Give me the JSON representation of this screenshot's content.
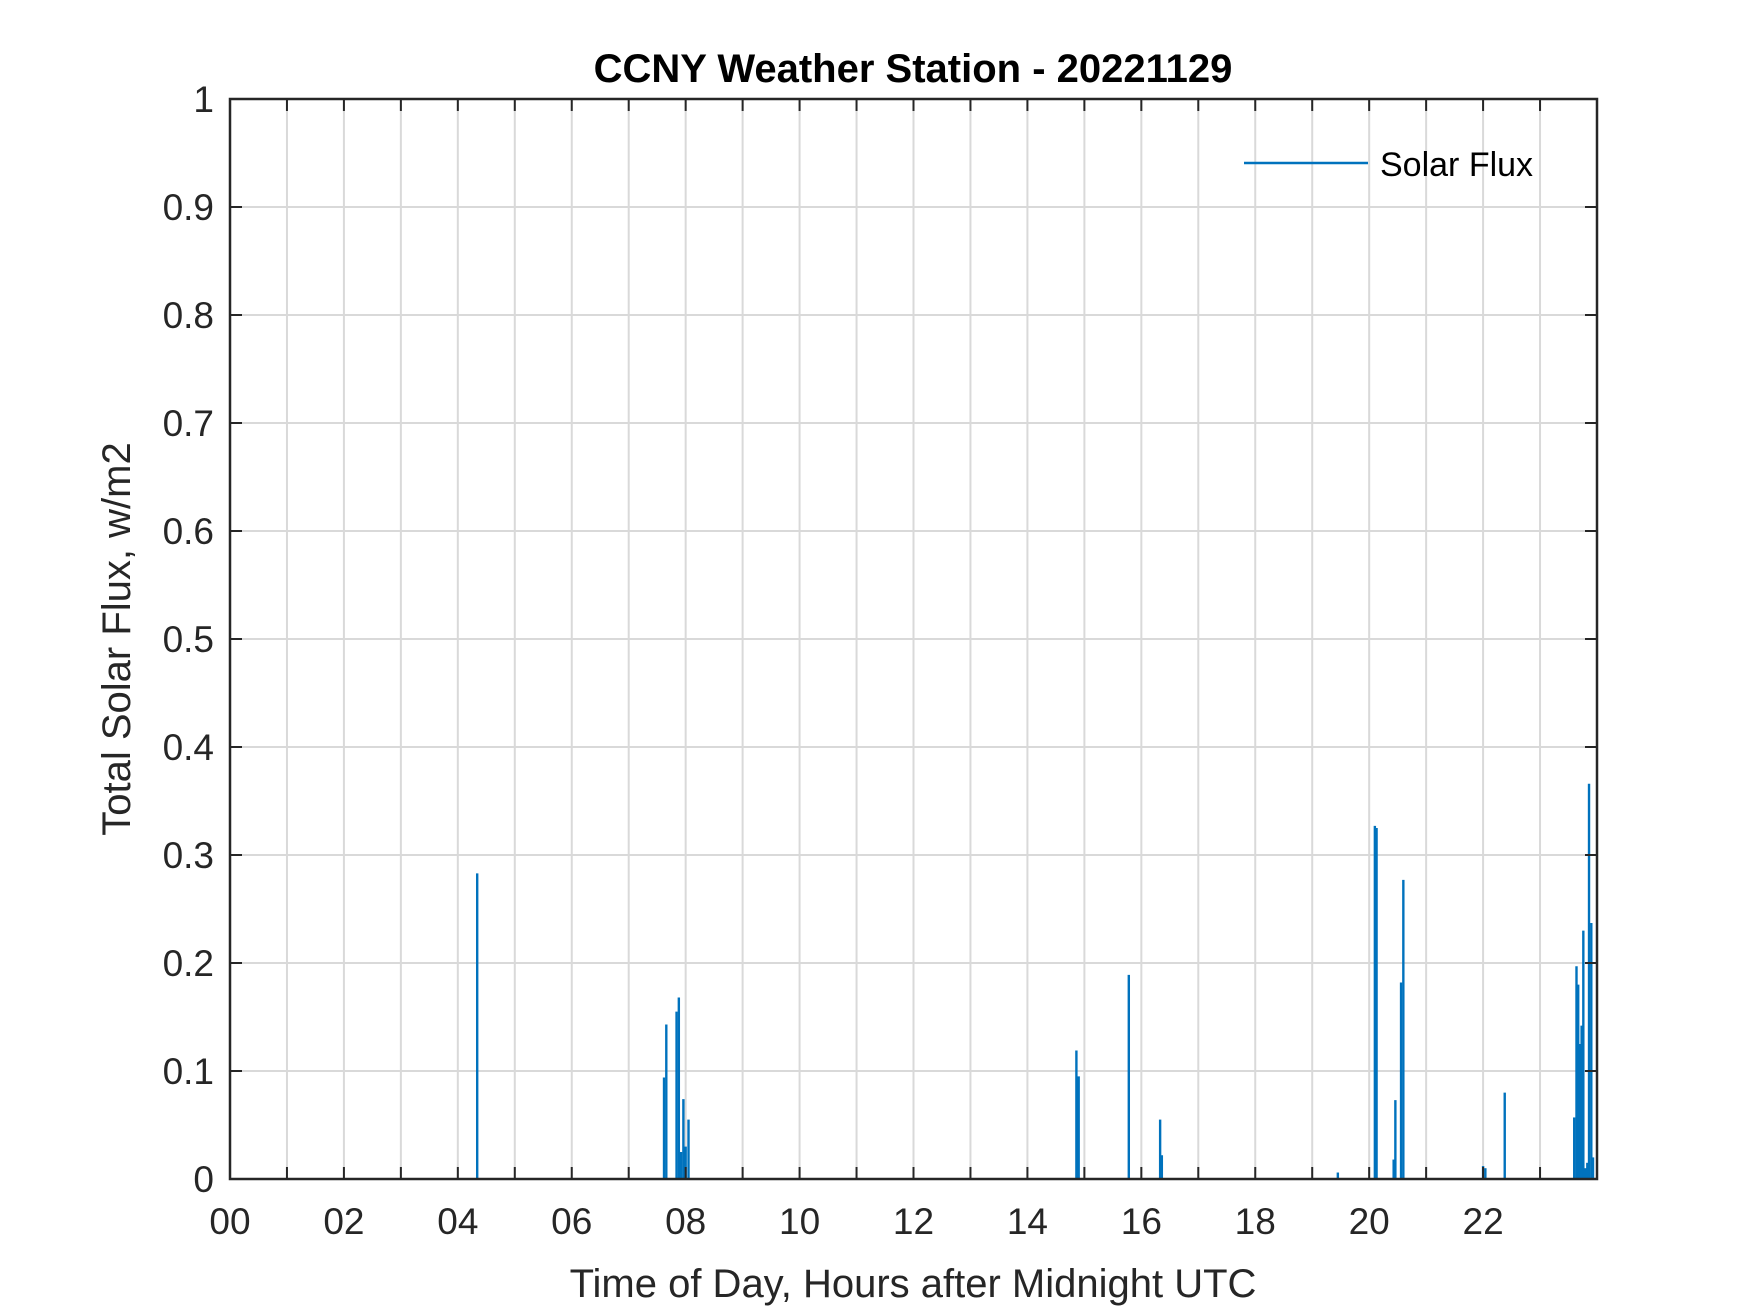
{
  "chart_data": {
    "type": "line",
    "title": "CCNY Weather Station - 20221129",
    "xlabel": "Time of Day, Hours after Midnight UTC",
    "ylabel": "Total Solar Flux, w/m2",
    "xlim": [
      0,
      24
    ],
    "ylim": [
      0,
      1
    ],
    "x_tick_values": [
      0,
      2,
      4,
      6,
      8,
      10,
      12,
      14,
      16,
      18,
      20,
      22
    ],
    "x_tick_labels": [
      "00",
      "02",
      "04",
      "06",
      "08",
      "10",
      "12",
      "14",
      "16",
      "18",
      "20",
      "22"
    ],
    "x_minor_grid_step": 1,
    "y_tick_values": [
      0,
      0.1,
      0.2,
      0.3,
      0.4,
      0.5,
      0.6,
      0.7,
      0.8,
      0.9,
      1
    ],
    "y_tick_labels": [
      "0",
      "0.1",
      "0.2",
      "0.3",
      "0.4",
      "0.5",
      "0.6",
      "0.7",
      "0.8",
      "0.9",
      "1"
    ],
    "grid": true,
    "legend": {
      "entries": [
        "Solar Flux"
      ],
      "location": "top-right"
    },
    "line_color": "#0072BD",
    "series": [
      {
        "name": "Solar Flux",
        "spikes": [
          {
            "x": 4.34,
            "y": 0.283
          },
          {
            "x": 7.62,
            "y": 0.094
          },
          {
            "x": 7.66,
            "y": 0.143
          },
          {
            "x": 7.84,
            "y": 0.155
          },
          {
            "x": 7.88,
            "y": 0.168
          },
          {
            "x": 7.92,
            "y": 0.025
          },
          {
            "x": 7.96,
            "y": 0.074
          },
          {
            "x": 8.0,
            "y": 0.03
          },
          {
            "x": 8.05,
            "y": 0.055
          },
          {
            "x": 14.86,
            "y": 0.119
          },
          {
            "x": 14.9,
            "y": 0.095
          },
          {
            "x": 15.78,
            "y": 0.189
          },
          {
            "x": 16.33,
            "y": 0.055
          },
          {
            "x": 16.36,
            "y": 0.022
          },
          {
            "x": 19.45,
            "y": 0.006
          },
          {
            "x": 20.1,
            "y": 0.327
          },
          {
            "x": 20.13,
            "y": 0.325
          },
          {
            "x": 20.43,
            "y": 0.018
          },
          {
            "x": 20.46,
            "y": 0.073
          },
          {
            "x": 20.56,
            "y": 0.182
          },
          {
            "x": 20.6,
            "y": 0.277
          },
          {
            "x": 22.0,
            "y": 0.012
          },
          {
            "x": 22.04,
            "y": 0.01
          },
          {
            "x": 22.38,
            "y": 0.08
          },
          {
            "x": 23.6,
            "y": 0.057
          },
          {
            "x": 23.64,
            "y": 0.197
          },
          {
            "x": 23.67,
            "y": 0.18
          },
          {
            "x": 23.7,
            "y": 0.125
          },
          {
            "x": 23.73,
            "y": 0.142
          },
          {
            "x": 23.76,
            "y": 0.23
          },
          {
            "x": 23.8,
            "y": 0.01
          },
          {
            "x": 23.83,
            "y": 0.015
          },
          {
            "x": 23.86,
            "y": 0.366
          },
          {
            "x": 23.9,
            "y": 0.237
          },
          {
            "x": 23.93,
            "y": 0.02
          }
        ]
      }
    ]
  }
}
